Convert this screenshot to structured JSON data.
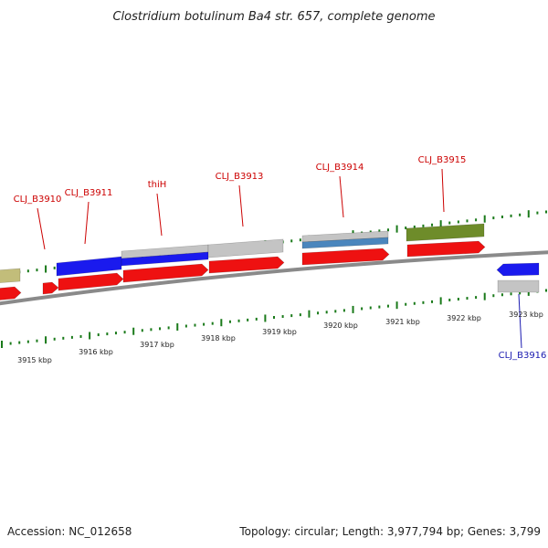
{
  "title": "Clostridium botulinum Ba4 str. 657, complete genome",
  "footer": {
    "accession": "Accession: NC_012658",
    "summary": "Topology: circular; Length: 3,977,794 bp; Genes: 3,799"
  },
  "colors": {
    "red": "#ee1111",
    "blue": "#1a1aee",
    "gray": "#c4c4c4",
    "steelblue": "#4a86bd",
    "olive": "#6e8c2a",
    "khaki": "#c2bd7a",
    "backbone": "#8a8a8a",
    "tick": "#1a7a1a",
    "label_red": "#cc0000",
    "label_blue": "#1a1ab0"
  },
  "gene_labels": [
    {
      "name": "CLJ_B3910",
      "color": "label_red"
    },
    {
      "name": "CLJ_B3911",
      "color": "label_red"
    },
    {
      "name": "thiH",
      "color": "label_red"
    },
    {
      "name": "CLJ_B3913",
      "color": "label_red"
    },
    {
      "name": "CLJ_B3914",
      "color": "label_red"
    },
    {
      "name": "CLJ_B3915",
      "color": "label_red"
    },
    {
      "name": "CLJ_B3916",
      "color": "label_blue"
    }
  ],
  "kbp_labels": [
    "3915 kbp",
    "3916 kbp",
    "3917 kbp",
    "3918 kbp",
    "3919 kbp",
    "3920 kbp",
    "3921 kbp",
    "3922 kbp",
    "3923 kbp"
  ]
}
